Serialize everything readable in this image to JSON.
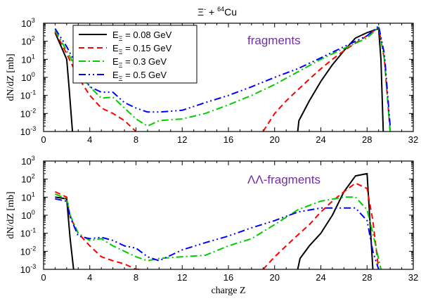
{
  "figure_title": {
    "main": "Ξ",
    "sup1": "-",
    "plus": " + ",
    "sup2": "64",
    "element": "Cu"
  },
  "chart_data": [
    {
      "type": "line",
      "panel": "top",
      "annotation": "fragments",
      "annotation_color": "#7030a0",
      "ylabel": "dN/dZ [mb]",
      "xlabel": "",
      "xlim": [
        0,
        32
      ],
      "ylim": [
        0.001,
        1000
      ],
      "yscale": "log",
      "xticks": [
        0,
        4,
        8,
        12,
        16,
        20,
        24,
        28,
        32
      ],
      "yticks": [
        0.001,
        0.01,
        0.1,
        1,
        10,
        100,
        1000
      ],
      "ytick_labels": [
        {
          "base": "10",
          "exp": "-3"
        },
        {
          "base": "10",
          "exp": "-2"
        },
        {
          "base": "10",
          "exp": "-1"
        },
        {
          "base": "10",
          "exp": "0"
        },
        {
          "base": "10",
          "exp": "1"
        },
        {
          "base": "10",
          "exp": "2"
        },
        {
          "base": "10",
          "exp": "3"
        }
      ],
      "legend_placement": "top-left",
      "series": [
        {
          "name": "E",
          "sub": "Ξ",
          "value": " = 0.08 GeV",
          "color": "#000000",
          "dash": "",
          "width": 2,
          "x": [
            1,
            2,
            2.2,
            2.5
          ],
          "y": [
            300,
            10,
            0.3,
            0.001
          ]
        },
        {
          "x": [
            22,
            22.1,
            23,
            24,
            25,
            26,
            27,
            28,
            29,
            29.2,
            29.4
          ],
          "y": [
            0.001,
            0.004,
            0.05,
            0.6,
            5,
            30,
            150,
            300,
            500,
            10,
            0.001
          ]
        },
        {
          "name": "E",
          "sub": "Ξ",
          "value": " = 0.15 GeV",
          "color": "#ff0000",
          "dash": "8,5",
          "width": 2,
          "x": [
            1,
            2,
            3,
            4,
            5,
            6,
            7,
            8
          ],
          "y": [
            350,
            20,
            1,
            0.1,
            0.02,
            0.01,
            0.004,
            0.001
          ]
        },
        {
          "x": [
            19,
            20,
            21,
            22,
            23,
            24,
            25,
            26,
            27,
            28,
            29,
            29.5,
            30
          ],
          "y": [
            0.001,
            0.01,
            0.05,
            0.2,
            0.8,
            3,
            10,
            30,
            80,
            200,
            600,
            10,
            0.001
          ]
        },
        {
          "name": "E",
          "sub": "Ξ",
          "value": " = 0.3 GeV",
          "color": "#00cc00",
          "dash": "10,4,2,4",
          "width": 2,
          "x": [
            1,
            2,
            3,
            4,
            5,
            6,
            7,
            8,
            9,
            10,
            12,
            14,
            16,
            18,
            20,
            22,
            24,
            26,
            28,
            29,
            29.5,
            30
          ],
          "y": [
            400,
            30,
            2,
            0.3,
            0.07,
            0.08,
            0.02,
            0.005,
            0.002,
            0.004,
            0.005,
            0.01,
            0.03,
            0.1,
            0.4,
            2,
            10,
            40,
            150,
            600,
            10,
            0.001
          ]
        },
        {
          "name": "E",
          "sub": "Ξ",
          "value": " = 0.5 GeV",
          "color": "#0000ff",
          "dash": "10,4,2,4,2,4",
          "width": 2,
          "x": [
            1,
            2,
            3,
            4,
            5,
            6,
            7,
            8,
            9,
            10,
            12,
            14,
            16,
            18,
            20,
            22,
            24,
            26,
            28,
            29,
            29.5,
            30
          ],
          "y": [
            500,
            50,
            3,
            0.3,
            0.15,
            0.15,
            0.04,
            0.02,
            0.012,
            0.012,
            0.015,
            0.04,
            0.1,
            0.3,
            1,
            3,
            12,
            50,
            200,
            700,
            20,
            0.002
          ]
        }
      ]
    },
    {
      "type": "line",
      "panel": "bottom",
      "annotation": "ΛΛ-fragments",
      "annotation_color": "#7030a0",
      "ylabel": "dN/dZ [mb]",
      "xlabel": "charge Z",
      "xlim": [
        0,
        32
      ],
      "ylim": [
        0.001,
        1000
      ],
      "yscale": "log",
      "xticks": [
        0,
        4,
        8,
        12,
        16,
        20,
        24,
        28,
        32
      ],
      "yticks": [
        0.001,
        0.01,
        0.1,
        1,
        10,
        100,
        1000
      ],
      "ytick_labels": [
        {
          "base": "10",
          "exp": "-3"
        },
        {
          "base": "10",
          "exp": "-2"
        },
        {
          "base": "10",
          "exp": "-1"
        },
        {
          "base": "10",
          "exp": "0"
        },
        {
          "base": "10",
          "exp": "1"
        },
        {
          "base": "10",
          "exp": "2"
        },
        {
          "base": "10",
          "exp": "3"
        }
      ],
      "series": [
        {
          "color": "#000000",
          "dash": "",
          "width": 2,
          "x": [
            1,
            2,
            2.3,
            2.6
          ],
          "y": [
            10,
            8,
            0.05,
            0.001
          ]
        },
        {
          "color": "#000000",
          "dash": "",
          "width": 2,
          "x": [
            22,
            22.2,
            23,
            24,
            25,
            26,
            27,
            28,
            28.5
          ],
          "y": [
            0.001,
            0.004,
            0.02,
            0.1,
            1,
            20,
            150,
            200,
            0.001
          ]
        },
        {
          "color": "#ff0000",
          "dash": "8,5",
          "width": 2,
          "x": [
            1,
            2,
            2.3,
            3,
            4,
            5,
            6,
            7,
            8,
            8.5
          ],
          "y": [
            20,
            10,
            0.8,
            0.1,
            0.02,
            0.005,
            0.003,
            0.002,
            0.001,
            0.001
          ]
        },
        {
          "color": "#ff0000",
          "dash": "8,5",
          "width": 2,
          "x": [
            19,
            20,
            21,
            22,
            23,
            24,
            25,
            26,
            27,
            28,
            28.5,
            29
          ],
          "y": [
            0.001,
            0.005,
            0.02,
            0.08,
            0.3,
            1.5,
            6,
            20,
            60,
            30,
            0.5,
            0.001
          ]
        },
        {
          "color": "#00cc00",
          "dash": "10,4,2,4",
          "width": 2,
          "x": [
            1,
            2,
            2.3,
            3,
            4,
            5,
            6,
            7,
            8,
            9,
            10,
            12,
            14,
            16,
            18,
            20,
            22,
            24,
            26,
            27,
            28,
            28.5,
            29.2
          ],
          "y": [
            15,
            8,
            1,
            0.1,
            0.04,
            0.05,
            0.02,
            0.01,
            0.005,
            0.003,
            0.004,
            0.005,
            0.006,
            0.02,
            0.05,
            0.3,
            2,
            6,
            10,
            10,
            2,
            0.1,
            0.001
          ]
        },
        {
          "color": "#0000ff",
          "dash": "10,4,2,4,2,4",
          "width": 2,
          "x": [
            1,
            2,
            2.3,
            3,
            4,
            5,
            6,
            7,
            8,
            9,
            10,
            12,
            14,
            16,
            18,
            20,
            22,
            24,
            26,
            27,
            28,
            28.5,
            29
          ],
          "y": [
            8,
            6,
            0.8,
            0.07,
            0.05,
            0.06,
            0.04,
            0.02,
            0.015,
            0.005,
            0.003,
            0.012,
            0.03,
            0.07,
            0.2,
            0.5,
            1.5,
            2.5,
            2.5,
            2.5,
            0.5,
            0.01,
            0.001
          ]
        }
      ]
    }
  ]
}
